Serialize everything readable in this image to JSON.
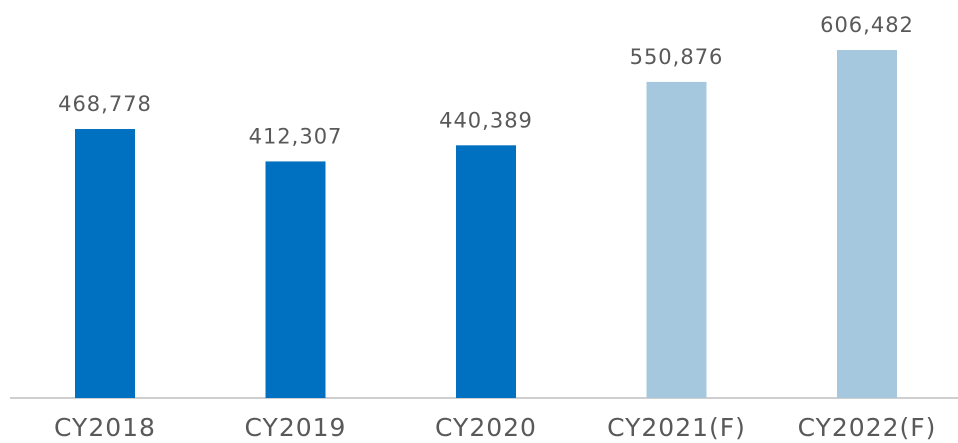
{
  "chart_data": {
    "type": "bar",
    "categories": [
      "CY2018",
      "CY2019",
      "CY2020",
      "CY2021(F)",
      "CY2022(F)"
    ],
    "values": [
      468778,
      412307,
      440389,
      550876,
      606482
    ],
    "value_labels": [
      "468,778",
      "412,307",
      "440,389",
      "550,876",
      "606,482"
    ],
    "colors": [
      "#0070c0",
      "#0070c0",
      "#0070c0",
      "#a6c8de",
      "#a6c8de"
    ]
  }
}
